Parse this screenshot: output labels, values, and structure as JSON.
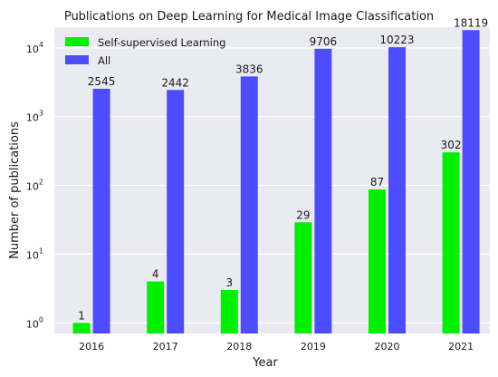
{
  "chart_data": {
    "type": "bar",
    "title": "Publications on Deep Learning for Medical Image Classification",
    "xlabel": "Year",
    "ylabel": "Number of publications",
    "yscale": "log",
    "ylim": [
      0.7,
      20000
    ],
    "yticks": [
      {
        "value": 1,
        "base": "10",
        "exp": "0"
      },
      {
        "value": 10,
        "base": "10",
        "exp": "1"
      },
      {
        "value": 100,
        "base": "10",
        "exp": "2"
      },
      {
        "value": 1000,
        "base": "10",
        "exp": "3"
      },
      {
        "value": 10000,
        "base": "10",
        "exp": "4"
      }
    ],
    "categories": [
      "2016",
      "2017",
      "2018",
      "2019",
      "2020",
      "2021"
    ],
    "series": [
      {
        "name": "Self-supervised Learning",
        "color": "#00ee00",
        "values": [
          1,
          4,
          3,
          29,
          87,
          302
        ],
        "labels": [
          "1",
          "4",
          "3",
          "29",
          "87",
          "302"
        ]
      },
      {
        "name": "All",
        "color": "#4d4dff",
        "values": [
          2545,
          2442,
          3836,
          9706,
          10223,
          18119
        ],
        "labels": [
          "2545",
          "2442",
          "3836",
          "9706",
          "10223",
          "18119"
        ]
      }
    ],
    "grid": true,
    "legend_position": "top-left",
    "background": "#eaeaf2",
    "grid_color": "#ffffff"
  }
}
